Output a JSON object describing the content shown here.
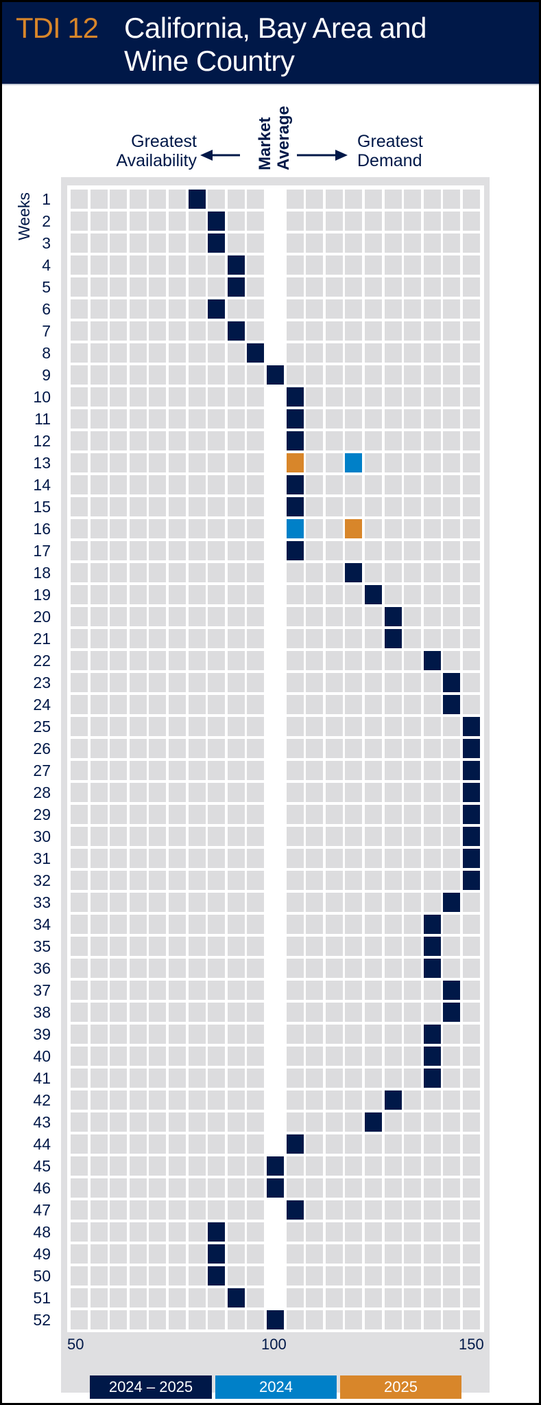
{
  "header": {
    "code": "TDI 12",
    "title_line1": "California, Bay Area and",
    "title_line2": "Wine Country"
  },
  "labels": {
    "left_l1": "Greatest",
    "left_l2": "Availability",
    "mid_l1": "Market",
    "mid_l2": "Average",
    "right_l1": "Greatest",
    "right_l2": "Demand"
  },
  "colors": {
    "navy": "#001848",
    "blue": "#0080c8",
    "orange": "#d8862a",
    "cell": "#dcdcde"
  },
  "chart_data": {
    "type": "heatmap",
    "title": "TDI 12 California, Bay Area and Wine Country",
    "ylabel": "Weeks",
    "xlabel": "",
    "xlim": [
      50,
      150
    ],
    "x_step": 5,
    "x_ticks": [
      "50",
      "100",
      "150"
    ],
    "weeks": [
      1,
      2,
      3,
      4,
      5,
      6,
      7,
      8,
      9,
      10,
      11,
      12,
      13,
      14,
      15,
      16,
      17,
      18,
      19,
      20,
      21,
      22,
      23,
      24,
      25,
      26,
      27,
      28,
      29,
      30,
      31,
      32,
      33,
      34,
      35,
      36,
      37,
      38,
      39,
      40,
      41,
      42,
      43,
      44,
      45,
      46,
      47,
      48,
      49,
      50,
      51,
      52
    ],
    "series": [
      {
        "name": "2024 – 2025",
        "color": "#001848",
        "values": [
          80,
          85,
          85,
          90,
          90,
          85,
          90,
          95,
          100,
          105,
          105,
          105,
          null,
          105,
          105,
          null,
          105,
          120,
          125,
          130,
          130,
          140,
          145,
          145,
          150,
          150,
          150,
          150,
          150,
          150,
          150,
          150,
          145,
          140,
          140,
          140,
          145,
          145,
          140,
          140,
          140,
          130,
          125,
          105,
          100,
          100,
          105,
          85,
          85,
          85,
          90,
          100
        ]
      },
      {
        "name": "2024",
        "color": "#0080c8",
        "points": [
          {
            "week": 13,
            "value": 120
          },
          {
            "week": 16,
            "value": 105
          }
        ]
      },
      {
        "name": "2025",
        "color": "#d8862a",
        "points": [
          {
            "week": 13,
            "value": 105
          },
          {
            "week": 16,
            "value": 120
          }
        ]
      }
    ],
    "legend_position": "bottom"
  }
}
